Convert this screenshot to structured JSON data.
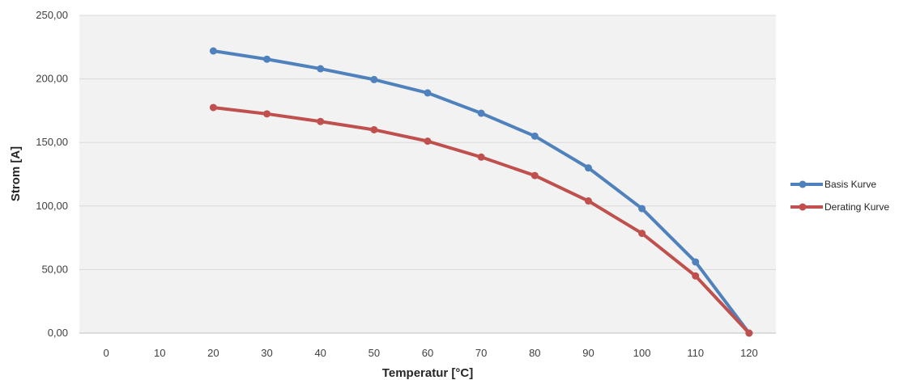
{
  "chart_data": {
    "type": "line",
    "xlabel": "Temperatur [°C]",
    "ylabel": "Strom [A]",
    "x_categories": [
      "0",
      "10",
      "20",
      "30",
      "40",
      "50",
      "60",
      "70",
      "80",
      "90",
      "100",
      "110",
      "120"
    ],
    "y_ticks": [
      "0,00",
      "50,00",
      "100,00",
      "150,00",
      "200,00",
      "250,00"
    ],
    "ylim": [
      0,
      250
    ],
    "grid": true,
    "legend_position": "right",
    "series": [
      {
        "name": "Basis Kurve",
        "color": "#4f81bd",
        "x": [
          20,
          30,
          40,
          50,
          60,
          70,
          80,
          90,
          100,
          110,
          120
        ],
        "values": [
          222,
          215.5,
          208,
          199.5,
          189,
          173,
          155,
          130,
          98,
          56,
          0
        ]
      },
      {
        "name": "Derating Kurve",
        "color": "#c0504d",
        "x": [
          20,
          30,
          40,
          50,
          60,
          70,
          80,
          90,
          100,
          110,
          120
        ],
        "values": [
          177.5,
          172.5,
          166.5,
          160,
          151,
          138.5,
          124,
          104,
          78.5,
          45,
          0
        ]
      }
    ]
  }
}
